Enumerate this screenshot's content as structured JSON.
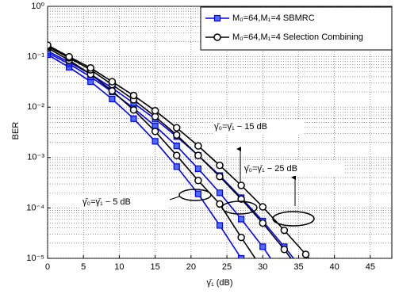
{
  "chart_data": {
    "type": "line",
    "y_label": "BER",
    "x_label": "γ̄₁ (dB)",
    "log_y": true,
    "grid": true,
    "legend": "upper right",
    "xlim": [
      0,
      48
    ],
    "xticks": [
      0,
      5,
      10,
      15,
      20,
      25,
      30,
      35,
      40,
      45
    ],
    "ylim": [
      1e-05,
      1
    ],
    "yticks": [
      {
        "value": 1e-05,
        "label": "10⁻⁵"
      },
      {
        "value": 0.0001,
        "label": "10⁻⁴"
      },
      {
        "value": 0.001,
        "label": "10⁻³"
      },
      {
        "value": 0.01,
        "label": "10⁻²"
      },
      {
        "value": 0.1,
        "label": "10⁻¹"
      },
      {
        "value": 1,
        "label": "10⁰"
      }
    ],
    "x": [
      0,
      3,
      6,
      9,
      12,
      15,
      18,
      21,
      24,
      27,
      30,
      33,
      36,
      39
    ],
    "series": [
      {
        "name": "M₀=64,M₁=4 SBMRC",
        "color": "#0000ff",
        "marker": "square",
        "curves": [
          {
            "values": [
              0.11,
              0.062,
              0.032,
              0.0145,
              0.0059,
              0.0021,
              0.00066,
              0.00019,
              4.5e-05,
              1e-05,
              null,
              null,
              null,
              null
            ]
          },
          {
            "values": [
              0.12,
              0.072,
              0.04,
              0.02,
              0.0095,
              0.0042,
              0.0017,
              0.0006,
              0.0002,
              6e-05,
              1.7e-05,
              4e-06,
              null,
              null
            ]
          },
          {
            "values": [
              0.13,
              0.078,
              0.045,
              0.024,
              0.012,
              0.0058,
              0.0026,
              0.0011,
              0.00044,
              0.00016,
              5.5e-05,
              1.7e-05,
              5e-06,
              null
            ]
          }
        ]
      },
      {
        "name": "M₀=64,M₁=4 Selection Combining",
        "color": "#000000",
        "marker": "circle",
        "curves": [
          {
            "values": [
              0.15,
              0.085,
              0.045,
              0.021,
              0.0088,
              0.0033,
              0.0011,
              0.00035,
              0.00012,
              2.6e-05,
              6e-06,
              null,
              null,
              null
            ]
          },
          {
            "values": [
              0.16,
              0.095,
              0.055,
              0.028,
              0.014,
              0.0065,
              0.0028,
              0.0011,
              0.00042,
              0.00015,
              5e-05,
              1.5e-05,
              4e-06,
              null
            ]
          },
          {
            "values": [
              0.17,
              0.1,
              0.06,
              0.032,
              0.017,
              0.0085,
              0.0039,
              0.0017,
              0.0007,
              0.00028,
              0.000105,
              3.6e-05,
              1.2e-05,
              3.5e-06
            ]
          }
        ]
      }
    ],
    "annotations": [
      "γ̄₀=γ̄₁ − 5 dB",
      "γ̄₀=γ̄₁ − 15 dB",
      "γ̄₀=γ̄₁ − 25 dB"
    ]
  }
}
